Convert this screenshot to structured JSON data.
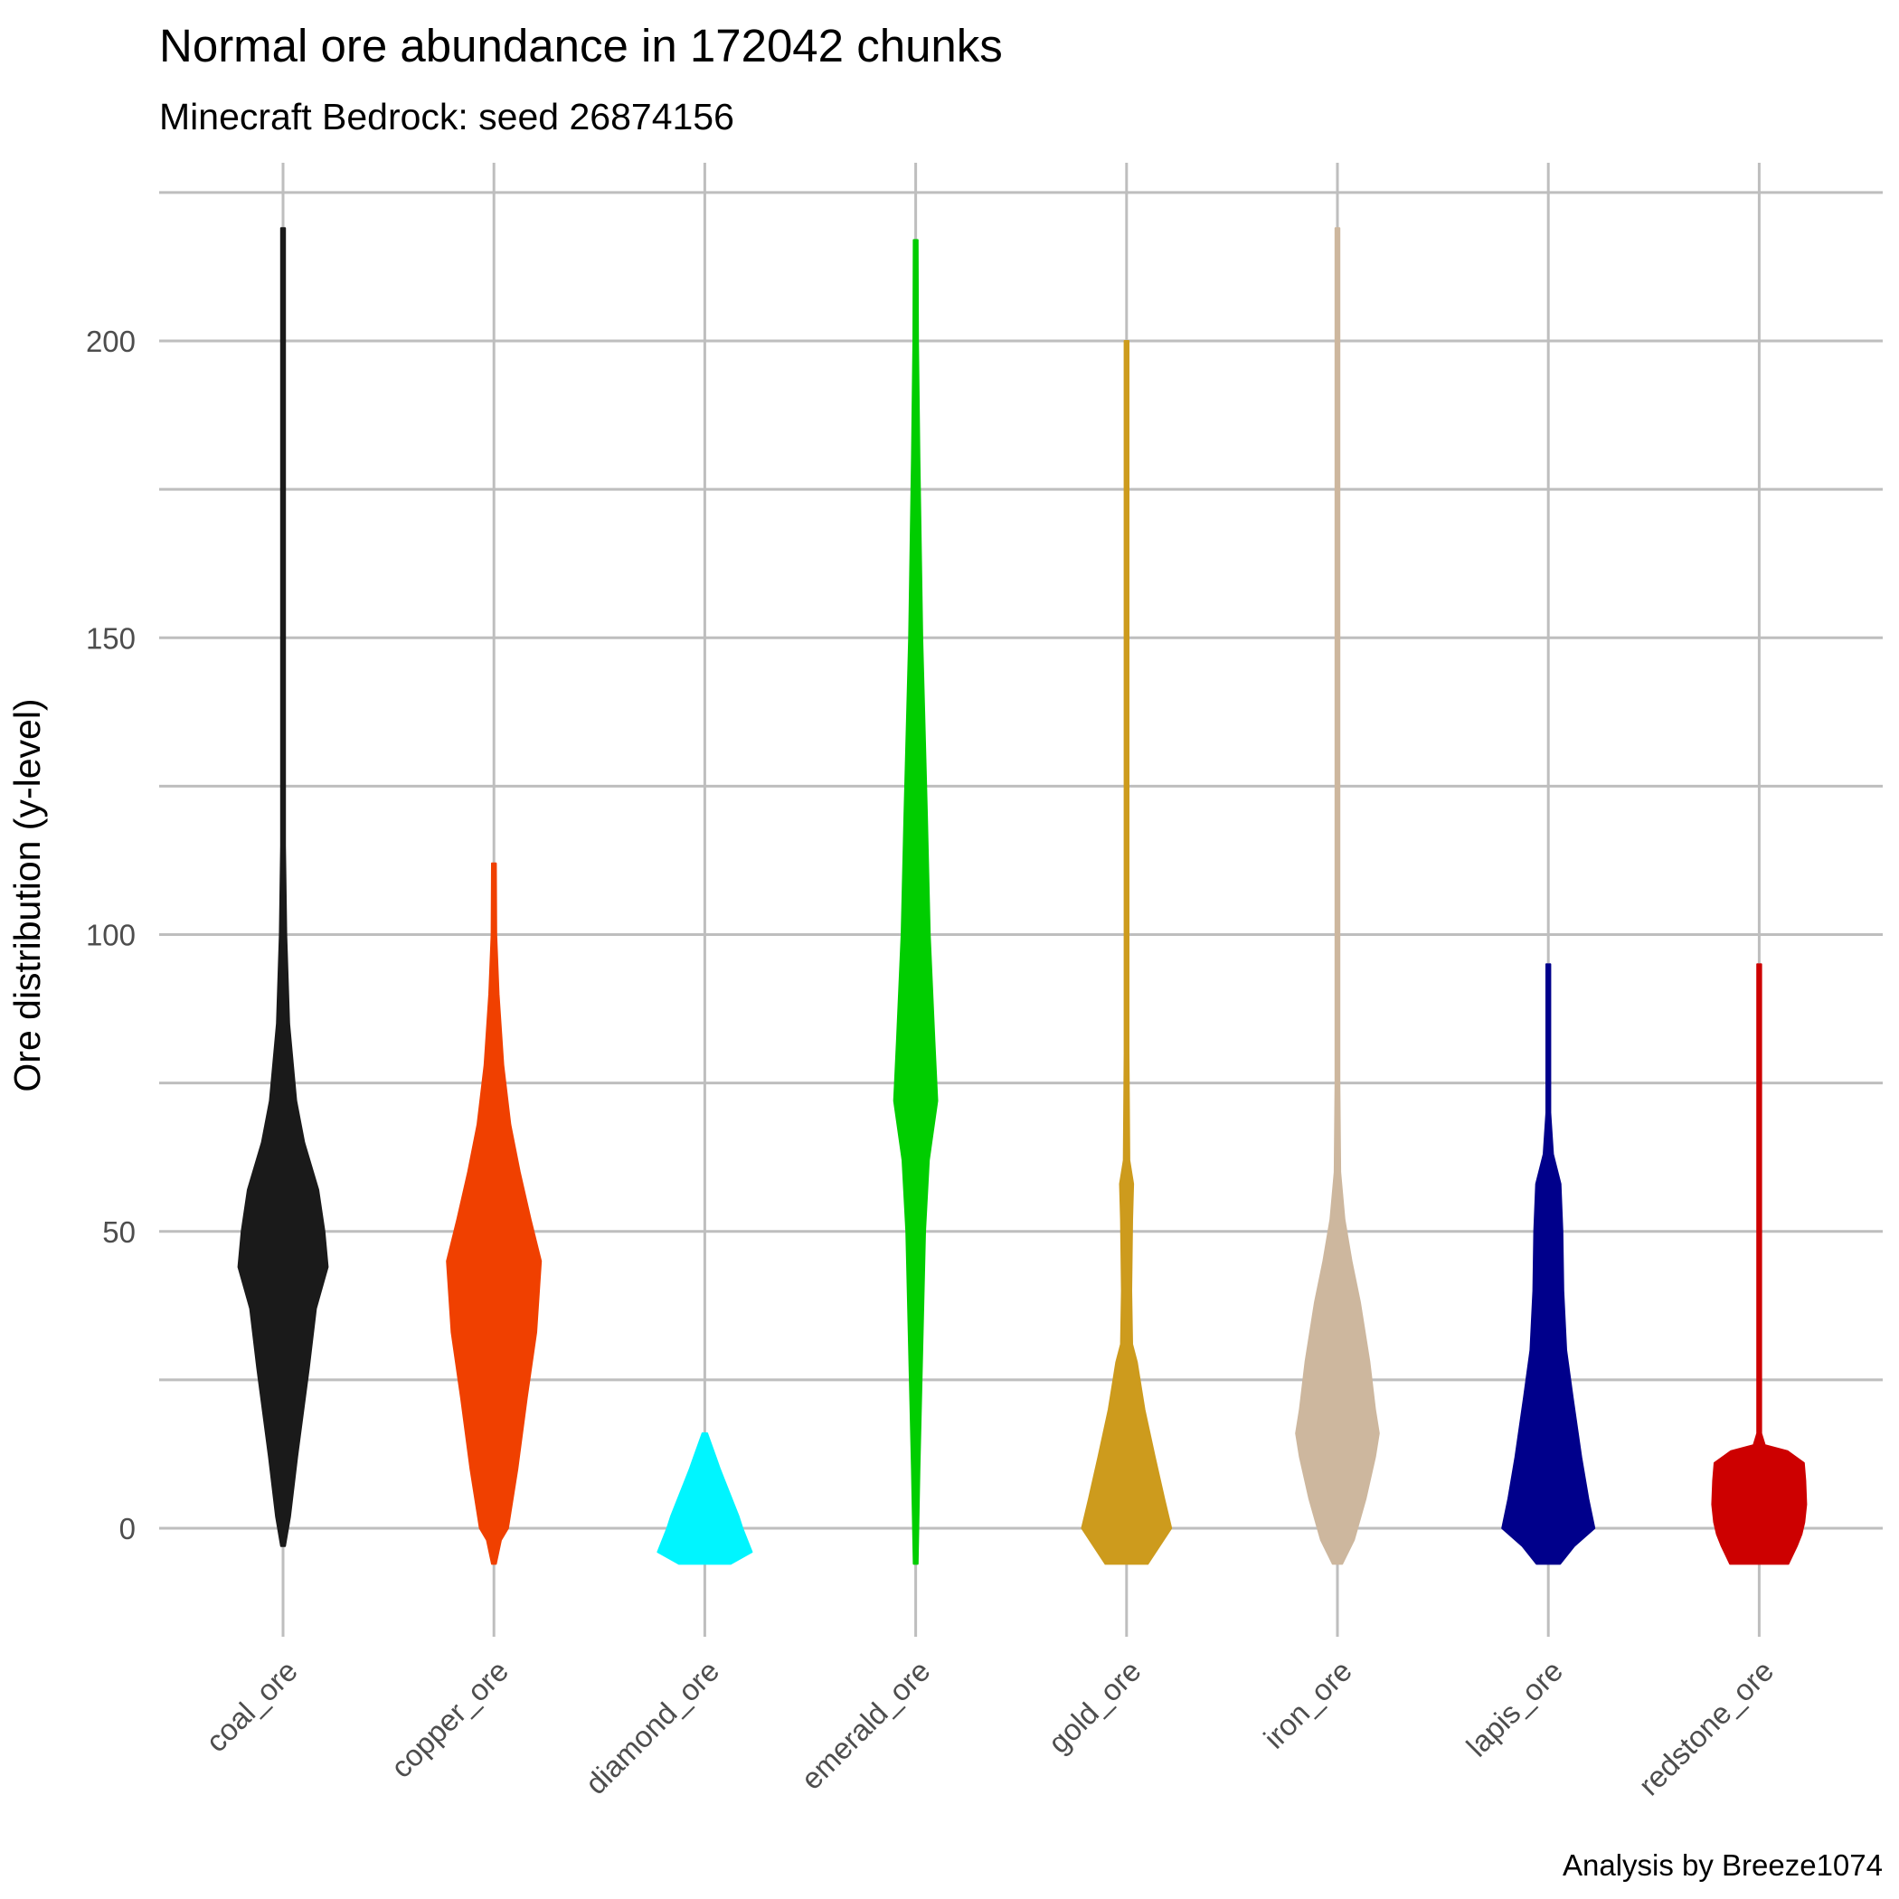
{
  "chart_data": {
    "type": "violin",
    "title": "Normal ore abundance in 172042 chunks",
    "subtitle": "Minecraft Bedrock: seed 26874156",
    "xlabel": "",
    "ylabel": "Ore distribution (y-level)",
    "caption": "Analysis by Breeze1074",
    "ylim": [
      -36,
      226
    ],
    "yticks": [
      0,
      50,
      100,
      150,
      200
    ],
    "grid": true,
    "legend": "none",
    "categories": [
      "coal_ore",
      "copper_ore",
      "diamond_ore",
      "emerald_ore",
      "gold_ore",
      "iron_ore",
      "lapis_ore",
      "redstone_ore"
    ],
    "series": [
      {
        "category": "coal_ore",
        "color": "#1a1a1a",
        "range": [
          -3,
          219
        ],
        "profile": [
          [
            -3,
            0.02
          ],
          [
            2,
            0.15
          ],
          [
            12,
            0.3
          ],
          [
            27,
            0.55
          ],
          [
            37,
            0.7
          ],
          [
            44,
            0.95
          ],
          [
            50,
            0.88
          ],
          [
            57,
            0.75
          ],
          [
            65,
            0.45
          ],
          [
            72,
            0.28
          ],
          [
            85,
            0.13
          ],
          [
            100,
            0.07
          ],
          [
            115,
            0.03
          ],
          [
            150,
            0.02
          ],
          [
            219,
            0.015
          ]
        ]
      },
      {
        "category": "copper_ore",
        "color": "#f04000",
        "range": [
          -6,
          112
        ],
        "profile": [
          [
            -6,
            0.02
          ],
          [
            -2,
            0.15
          ],
          [
            0,
            0.3
          ],
          [
            10,
            0.5
          ],
          [
            22,
            0.7
          ],
          [
            33,
            0.9
          ],
          [
            45,
            1.0
          ],
          [
            52,
            0.78
          ],
          [
            60,
            0.55
          ],
          [
            68,
            0.35
          ],
          [
            78,
            0.2
          ],
          [
            90,
            0.1
          ],
          [
            100,
            0.05
          ],
          [
            112,
            0.02
          ]
        ]
      },
      {
        "category": "diamond_ore",
        "color": "#00f5ff",
        "range": [
          -6,
          16
        ],
        "profile": [
          [
            -6,
            0.55
          ],
          [
            -4,
            1.0
          ],
          [
            -2,
            0.9
          ],
          [
            0,
            0.8
          ],
          [
            2,
            0.72
          ],
          [
            4,
            0.62
          ],
          [
            6,
            0.52
          ],
          [
            8,
            0.42
          ],
          [
            10,
            0.32
          ],
          [
            12,
            0.23
          ],
          [
            14,
            0.14
          ],
          [
            16,
            0.05
          ]
        ]
      },
      {
        "category": "emerald_ore",
        "color": "#00cd00",
        "range": [
          -6,
          217
        ],
        "profile": [
          [
            -6,
            0.02
          ],
          [
            10,
            0.08
          ],
          [
            30,
            0.14
          ],
          [
            50,
            0.2
          ],
          [
            62,
            0.28
          ],
          [
            72,
            0.46
          ],
          [
            82,
            0.4
          ],
          [
            100,
            0.3
          ],
          [
            120,
            0.24
          ],
          [
            150,
            0.14
          ],
          [
            180,
            0.08
          ],
          [
            200,
            0.05
          ],
          [
            217,
            0.02
          ]
        ]
      },
      {
        "category": "gold_ore",
        "color": "#cd9b1d",
        "range": [
          -6,
          200
        ],
        "profile": [
          [
            -6,
            0.45
          ],
          [
            -3,
            0.7
          ],
          [
            0,
            0.95
          ],
          [
            5,
            0.8
          ],
          [
            12,
            0.6
          ],
          [
            20,
            0.38
          ],
          [
            28,
            0.22
          ],
          [
            31,
            0.12
          ],
          [
            40,
            0.1
          ],
          [
            52,
            0.12
          ],
          [
            58,
            0.14
          ],
          [
            62,
            0.06
          ],
          [
            80,
            0.03
          ],
          [
            120,
            0.02
          ],
          [
            200,
            0.01
          ]
        ]
      },
      {
        "category": "iron_ore",
        "color": "#cdb79e",
        "range": [
          -6,
          219
        ],
        "profile": [
          [
            -6,
            0.1
          ],
          [
            -2,
            0.35
          ],
          [
            5,
            0.6
          ],
          [
            12,
            0.8
          ],
          [
            16,
            0.88
          ],
          [
            20,
            0.8
          ],
          [
            28,
            0.68
          ],
          [
            38,
            0.48
          ],
          [
            45,
            0.3
          ],
          [
            52,
            0.15
          ],
          [
            60,
            0.06
          ],
          [
            75,
            0.03
          ],
          [
            100,
            0.02
          ],
          [
            219,
            0.01
          ]
        ]
      },
      {
        "category": "lapis_ore",
        "color": "#00008b",
        "range": [
          -6,
          95
        ],
        "profile": [
          [
            -6,
            0.25
          ],
          [
            -3,
            0.55
          ],
          [
            0,
            0.98
          ],
          [
            5,
            0.85
          ],
          [
            12,
            0.7
          ],
          [
            22,
            0.52
          ],
          [
            30,
            0.38
          ],
          [
            40,
            0.32
          ],
          [
            50,
            0.3
          ],
          [
            58,
            0.26
          ],
          [
            63,
            0.1
          ],
          [
            70,
            0.04
          ],
          [
            80,
            0.02
          ],
          [
            95,
            0.015
          ]
        ]
      },
      {
        "category": "redstone_ore",
        "color": "#cd0000",
        "range": [
          -6,
          95
        ],
        "profile": [
          [
            -6,
            0.62
          ],
          [
            -3,
            0.8
          ],
          [
            -1,
            0.9
          ],
          [
            1,
            0.96
          ],
          [
            4,
            1.0
          ],
          [
            8,
            0.98
          ],
          [
            11,
            0.95
          ],
          [
            13,
            0.6
          ],
          [
            14,
            0.12
          ],
          [
            16,
            0.03
          ],
          [
            30,
            0.015
          ],
          [
            95,
            0.012
          ]
        ]
      }
    ]
  }
}
